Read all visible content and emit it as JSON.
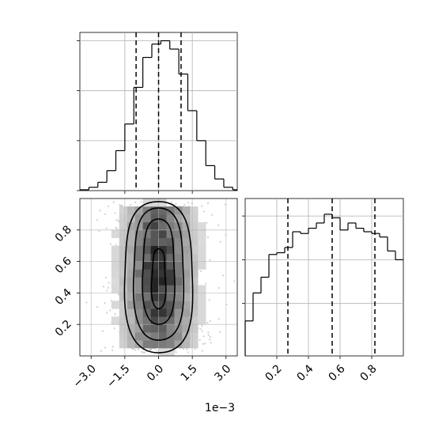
{
  "chart_data": [
    {
      "type": "histogram",
      "panel": "top-left",
      "x_range": [
        -0.0035,
        0.0035
      ],
      "bin_edges": [
        -0.0035,
        -0.0031,
        -0.0027,
        -0.0023,
        -0.0019,
        -0.0015,
        -0.0011,
        -0.0007,
        -0.0003,
        0.0001,
        0.0005,
        0.0009,
        0.0013,
        0.0017,
        0.0021,
        0.0025,
        0.0029,
        0.0033,
        0.0035
      ],
      "counts": [
        0.5,
        2,
        5,
        12,
        24,
        40,
        62,
        80,
        88,
        90,
        85,
        70,
        48,
        30,
        15,
        7,
        2,
        0.5
      ],
      "y_max": 95,
      "quantile_lines": [
        -0.001,
        0.0,
        0.001
      ],
      "xgrid": [
        -0.0015,
        0.0,
        0.0015
      ],
      "ygrid": [
        30,
        60,
        90
      ],
      "grid": true
    },
    {
      "type": "heatmap",
      "panel": "bottom-left",
      "x_range": [
        -0.0035,
        0.0035
      ],
      "y_range": [
        0.0,
        1.0
      ],
      "x_ticks": [
        -0.003,
        -0.0015,
        0.0,
        0.0015,
        0.003
      ],
      "x_tick_labels": [
        "−3.0",
        "−1.5",
        "0.0",
        "1.5",
        "3.0"
      ],
      "x_offset_label": "1e−3",
      "y_ticks": [
        0.2,
        0.4,
        0.6,
        0.8
      ],
      "y_tick_labels": [
        "0.2",
        "0.4",
        "0.6",
        "0.8"
      ],
      "grid": true,
      "density_center": [
        0.0,
        0.55
      ],
      "density_spread": [
        0.0009,
        0.23
      ],
      "contour_levels": [
        {
          "x_half_width": 0.0015,
          "y_range": [
            0.02,
            0.98
          ]
        },
        {
          "x_half_width": 0.0011,
          "y_range": [
            0.1,
            0.94
          ]
        },
        {
          "x_half_width": 0.0007,
          "y_range": [
            0.2,
            0.87
          ]
        },
        {
          "x_half_width": 0.0003,
          "y_range": [
            0.3,
            0.68
          ]
        }
      ]
    },
    {
      "type": "histogram",
      "panel": "bottom-right",
      "x_range": [
        0.0,
        1.0
      ],
      "x_ticks": [
        0.2,
        0.4,
        0.6,
        0.8
      ],
      "x_tick_labels": [
        "0.2",
        "0.4",
        "0.6",
        "0.8"
      ],
      "bin_edges": [
        0.0,
        0.05,
        0.1,
        0.15,
        0.2,
        0.25,
        0.3,
        0.35,
        0.4,
        0.45,
        0.5,
        0.55,
        0.6,
        0.65,
        0.7,
        0.75,
        0.8,
        0.85,
        0.9,
        0.95,
        1.0
      ],
      "counts": [
        20,
        36,
        45,
        58,
        59,
        62,
        71,
        70,
        73,
        76,
        81,
        79,
        72,
        76,
        73,
        71,
        70,
        68,
        60,
        55
      ],
      "y_max": 90,
      "quantile_lines": [
        0.27,
        0.55,
        0.82
      ],
      "ygrid": [
        30,
        55,
        80
      ],
      "grid": true
    }
  ]
}
